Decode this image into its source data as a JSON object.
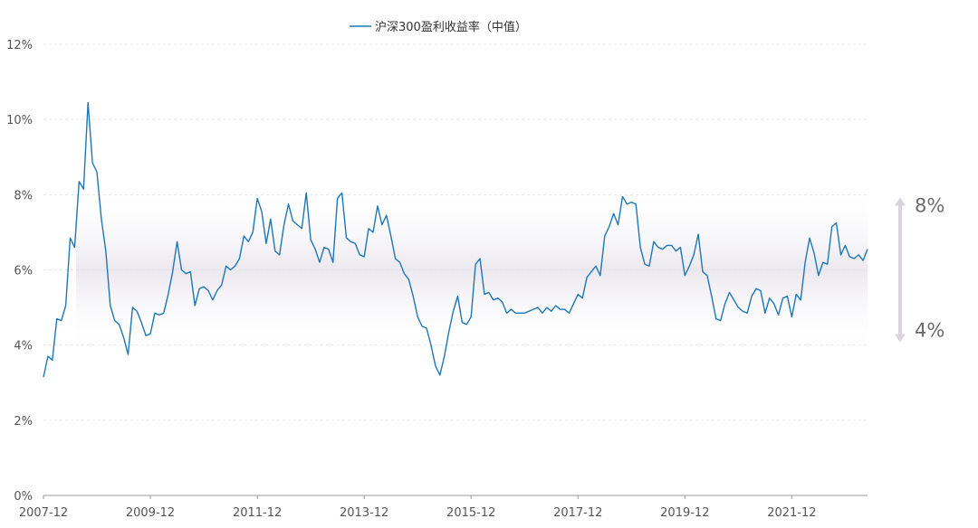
{
  "chart_data": {
    "type": "line",
    "legend": {
      "position": "top-center"
    },
    "series": [
      {
        "name": "沪深300盈利收益率（中值）",
        "color": "#1f77b4",
        "start": "2007-12",
        "step": "1 month",
        "values": [
          3.15,
          3.7,
          3.6,
          4.7,
          4.65,
          5.05,
          6.85,
          6.6,
          8.35,
          8.15,
          10.45,
          8.85,
          8.6,
          7.35,
          6.5,
          5.05,
          4.65,
          4.55,
          4.2,
          3.75,
          5.0,
          4.9,
          4.6,
          4.25,
          4.3,
          4.85,
          4.8,
          4.85,
          5.35,
          5.95,
          6.75,
          6.0,
          5.9,
          5.95,
          5.05,
          5.5,
          5.55,
          5.45,
          5.2,
          5.45,
          5.6,
          6.1,
          6.0,
          6.1,
          6.3,
          6.9,
          6.75,
          7.0,
          7.9,
          7.55,
          6.7,
          7.35,
          6.5,
          6.4,
          7.2,
          7.75,
          7.3,
          7.2,
          7.1,
          8.05,
          6.8,
          6.55,
          6.2,
          6.6,
          6.55,
          6.2,
          7.9,
          8.05,
          6.85,
          6.75,
          6.7,
          6.4,
          6.35,
          7.1,
          7.0,
          7.7,
          7.2,
          7.45,
          6.9,
          6.3,
          6.2,
          5.9,
          5.75,
          5.3,
          4.75,
          4.5,
          4.45,
          4.0,
          3.45,
          3.2,
          3.7,
          4.35,
          4.9,
          5.3,
          4.6,
          4.55,
          4.75,
          6.15,
          6.3,
          5.35,
          5.4,
          5.2,
          5.25,
          5.15,
          4.85,
          4.95,
          4.85,
          4.85,
          4.85,
          4.9,
          4.95,
          5.0,
          4.85,
          5.0,
          4.9,
          5.05,
          4.95,
          4.95,
          4.85,
          5.1,
          5.35,
          5.25,
          5.8,
          5.95,
          6.1,
          5.85,
          6.9,
          7.15,
          7.5,
          7.2,
          7.95,
          7.75,
          7.8,
          7.75,
          6.6,
          6.15,
          6.1,
          6.75,
          6.6,
          6.55,
          6.65,
          6.65,
          6.5,
          6.6,
          5.85,
          6.1,
          6.4,
          6.95,
          5.95,
          5.85,
          5.3,
          4.7,
          4.65,
          5.1,
          5.4,
          5.2,
          5.0,
          4.9,
          4.85,
          5.3,
          5.5,
          5.45,
          4.85,
          5.25,
          5.1,
          4.8,
          5.25,
          5.3,
          4.75,
          5.35,
          5.2,
          6.2,
          6.85,
          6.45,
          5.85,
          6.2,
          6.15,
          7.15,
          7.25,
          6.4,
          6.65,
          6.35,
          6.3,
          6.4,
          6.25,
          6.55
        ]
      }
    ],
    "y_axis": {
      "min": 0,
      "max": 12,
      "tick_step": 2,
      "tick_labels": [
        "0%",
        "2%",
        "4%",
        "6%",
        "8%",
        "10%",
        "12%"
      ]
    },
    "x_axis": {
      "tick_labels": [
        "2007-12",
        "2009-12",
        "2011-12",
        "2013-12",
        "2015-12",
        "2017-12",
        "2019-12",
        "2021-12"
      ]
    },
    "grid": true,
    "band": {
      "low": 4,
      "high": 8,
      "low_label": "4%",
      "high_label": "8%"
    }
  },
  "colors": {
    "line": "#1f77b4",
    "grid": "#e6e6e6",
    "axis": "#999999",
    "band": "#eeebf1",
    "arrow": "#d9d4de"
  }
}
